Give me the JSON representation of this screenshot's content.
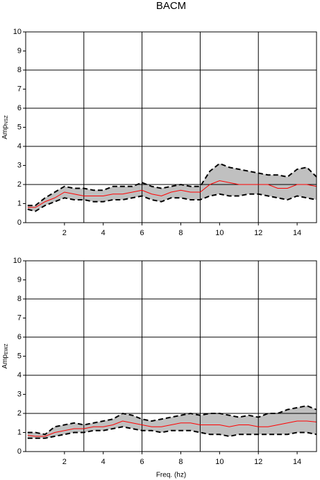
{
  "chart_data": [
    {
      "type": "line",
      "title": "BACM",
      "ylabel": {
        "text": "Amp",
        "sub": "NSZ"
      },
      "x": [
        0.1,
        0.5,
        1,
        1.5,
        2,
        2.5,
        3,
        3.5,
        4,
        4.5,
        5,
        5.5,
        6,
        6.5,
        7,
        7.5,
        8,
        8.5,
        9,
        9.5,
        10,
        10.5,
        11,
        11.5,
        12,
        12.5,
        13,
        13.5,
        14,
        14.5,
        15
      ],
      "band_color": "#c0c0c0",
      "series": [
        {
          "color": "#000000",
          "dashed": true,
          "values": [
            0.7,
            0.6,
            0.9,
            1.1,
            1.3,
            1.2,
            1.2,
            1.1,
            1.1,
            1.2,
            1.2,
            1.3,
            1.4,
            1.2,
            1.1,
            1.3,
            1.3,
            1.2,
            1.2,
            1.4,
            1.5,
            1.4,
            1.4,
            1.5,
            1.5,
            1.4,
            1.3,
            1.2,
            1.4,
            1.3,
            1.2
          ]
        },
        {
          "color": "#000000",
          "dashed": true,
          "values": [
            0.9,
            0.9,
            1.3,
            1.6,
            1.9,
            1.8,
            1.8,
            1.7,
            1.7,
            1.9,
            1.9,
            1.9,
            2.1,
            1.9,
            1.8,
            1.9,
            2.0,
            1.9,
            1.9,
            2.7,
            3.1,
            2.9,
            2.8,
            2.7,
            2.6,
            2.5,
            2.5,
            2.4,
            2.8,
            2.9,
            2.4
          ]
        },
        {
          "color": "#ff0000",
          "dashed": false,
          "values": [
            0.8,
            0.8,
            1.1,
            1.3,
            1.6,
            1.5,
            1.4,
            1.4,
            1.4,
            1.5,
            1.5,
            1.6,
            1.7,
            1.5,
            1.4,
            1.6,
            1.7,
            1.6,
            1.6,
            2.0,
            2.2,
            2.1,
            2.0,
            2.0,
            2.0,
            2.0,
            1.8,
            1.8,
            2.0,
            2.0,
            1.9
          ]
        }
      ],
      "xlim": [
        0,
        15
      ],
      "ylim": [
        0,
        10
      ],
      "xticks": [
        2,
        4,
        6,
        8,
        10,
        12,
        14
      ],
      "yticks": [
        0,
        1,
        2,
        3,
        4,
        5,
        6,
        7,
        8,
        9,
        10
      ],
      "grid_x": [
        3,
        6,
        9,
        12
      ],
      "grid_y": [
        2,
        4,
        6,
        8
      ]
    },
    {
      "type": "line",
      "xlabel": "Freq. (hz)",
      "ylabel": {
        "text": "Amp",
        "sub": "EWZ"
      },
      "x": [
        0.1,
        0.5,
        1,
        1.5,
        2,
        2.5,
        3,
        3.5,
        4,
        4.5,
        5,
        5.5,
        6,
        6.5,
        7,
        7.5,
        8,
        8.5,
        9,
        9.5,
        10,
        10.5,
        11,
        11.5,
        12,
        12.5,
        13,
        13.5,
        14,
        14.5,
        15
      ],
      "band_color": "#c0c0c0",
      "series": [
        {
          "color": "#000000",
          "dashed": true,
          "values": [
            0.7,
            0.7,
            0.7,
            0.8,
            0.9,
            1.0,
            1.0,
            1.1,
            1.1,
            1.2,
            1.3,
            1.2,
            1.1,
            1.1,
            1.0,
            1.1,
            1.1,
            1.1,
            1.0,
            0.9,
            0.9,
            0.8,
            0.9,
            0.9,
            0.9,
            0.9,
            0.9,
            0.9,
            1.0,
            1.0,
            0.9
          ]
        },
        {
          "color": "#000000",
          "dashed": true,
          "values": [
            1.0,
            1.0,
            0.9,
            1.3,
            1.4,
            1.5,
            1.4,
            1.5,
            1.6,
            1.7,
            2.0,
            1.9,
            1.7,
            1.6,
            1.7,
            1.8,
            1.9,
            2.0,
            1.9,
            2.0,
            2.0,
            1.9,
            1.8,
            1.9,
            1.8,
            2.0,
            2.0,
            2.2,
            2.3,
            2.4,
            2.2
          ]
        },
        {
          "color": "#ff0000",
          "dashed": false,
          "values": [
            0.85,
            0.8,
            0.8,
            1.0,
            1.1,
            1.2,
            1.2,
            1.3,
            1.3,
            1.4,
            1.6,
            1.5,
            1.4,
            1.3,
            1.3,
            1.4,
            1.5,
            1.5,
            1.4,
            1.4,
            1.4,
            1.3,
            1.4,
            1.4,
            1.3,
            1.3,
            1.4,
            1.5,
            1.6,
            1.6,
            1.55
          ]
        }
      ],
      "xlim": [
        0,
        15
      ],
      "ylim": [
        0,
        10
      ],
      "xticks": [
        2,
        4,
        6,
        8,
        10,
        12,
        14
      ],
      "yticks": [
        0,
        1,
        2,
        3,
        4,
        5,
        6,
        7,
        8,
        9,
        10
      ],
      "grid_x": [
        3,
        6,
        9,
        12
      ],
      "grid_y": [
        2,
        4,
        6,
        8
      ]
    }
  ]
}
